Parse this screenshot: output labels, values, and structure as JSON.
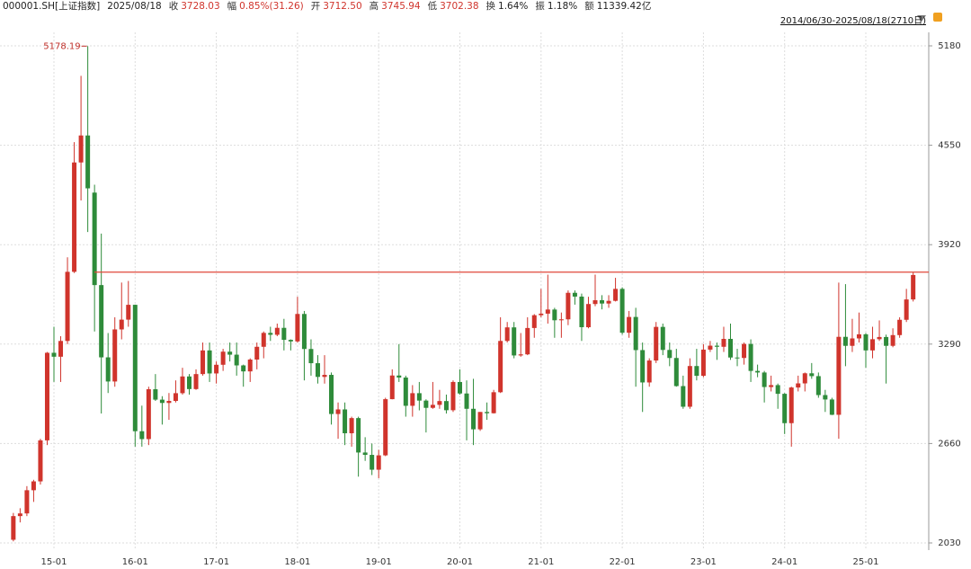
{
  "header": {
    "code": "000001.SH[上证指数]",
    "date": "2025/08/18",
    "items": [
      {
        "label": "收",
        "value": "3728.03",
        "highlight": true
      },
      {
        "label": "幅",
        "value": "0.85%(31.26)",
        "highlight": true
      },
      {
        "label": "开",
        "value": "3712.50",
        "highlight": true
      },
      {
        "label": "高",
        "value": "3745.94",
        "highlight": true
      },
      {
        "label": "低",
        "value": "3702.38",
        "highlight": true
      },
      {
        "label": "换",
        "value": "1.64%",
        "highlight": false
      },
      {
        "label": "振",
        "value": "1.18%",
        "highlight": false
      },
      {
        "label": "额",
        "value": "11339.42亿",
        "highlight": false
      }
    ],
    "range": "2014/06/30-2025/08/18(2710日)"
  },
  "chart_data": {
    "type": "candlestick",
    "up_color": "#d0342c",
    "down_color": "#2e8b3a",
    "categories": [
      null,
      null,
      null,
      null,
      null,
      null,
      "15-01",
      null,
      null,
      null,
      null,
      null,
      null,
      null,
      null,
      null,
      null,
      null,
      "16-01",
      null,
      null,
      null,
      null,
      null,
      null,
      null,
      null,
      null,
      null,
      null,
      "17-01",
      null,
      null,
      null,
      null,
      null,
      null,
      null,
      null,
      null,
      null,
      null,
      "18-01",
      null,
      null,
      null,
      null,
      null,
      null,
      null,
      null,
      null,
      null,
      null,
      "19-01",
      null,
      null,
      null,
      null,
      null,
      null,
      null,
      null,
      null,
      null,
      null,
      "20-01",
      null,
      null,
      null,
      null,
      null,
      null,
      null,
      null,
      null,
      null,
      null,
      "21-01",
      null,
      null,
      null,
      null,
      null,
      null,
      null,
      null,
      null,
      null,
      null,
      "22-01",
      null,
      null,
      null,
      null,
      null,
      null,
      null,
      null,
      null,
      null,
      null,
      "23-01",
      null,
      null,
      null,
      null,
      null,
      null,
      null,
      null,
      null,
      null,
      null,
      "24-01",
      null,
      null,
      null,
      null,
      null,
      null,
      null,
      null,
      null,
      null,
      null,
      "25-01",
      null,
      null,
      null,
      null,
      null,
      null,
      null
    ],
    "ohlc": [
      [
        2050,
        2220,
        2040,
        2200
      ],
      [
        2200,
        2250,
        2160,
        2217
      ],
      [
        2217,
        2390,
        2200,
        2364
      ],
      [
        2364,
        2430,
        2290,
        2420
      ],
      [
        2420,
        2690,
        2400,
        2680
      ],
      [
        2680,
        3240,
        2650,
        3235
      ],
      [
        3235,
        3400,
        3050,
        3210
      ],
      [
        3210,
        3340,
        3050,
        3310
      ],
      [
        3310,
        3840,
        3290,
        3748
      ],
      [
        3748,
        4570,
        3740,
        4441
      ],
      [
        4441,
        4990,
        4200,
        4612
      ],
      [
        4612,
        5178.19,
        4000,
        4277
      ],
      [
        4250,
        4300,
        3370,
        3664
      ],
      [
        3664,
        3990,
        2850,
        3206
      ],
      [
        3206,
        3360,
        2980,
        3053
      ],
      [
        3053,
        3460,
        3020,
        3383
      ],
      [
        3383,
        3680,
        3320,
        3445
      ],
      [
        3445,
        3690,
        3400,
        3539
      ],
      [
        3539,
        3540,
        2640,
        2738
      ],
      [
        2738,
        2900,
        2640,
        2688
      ],
      [
        2688,
        3020,
        2650,
        3004
      ],
      [
        3004,
        3100,
        2930,
        2938
      ],
      [
        2938,
        2960,
        2780,
        2917
      ],
      [
        2917,
        2980,
        2810,
        2930
      ],
      [
        2930,
        3060,
        2920,
        2979
      ],
      [
        2979,
        3140,
        2970,
        3085
      ],
      [
        3085,
        3100,
        2970,
        3005
      ],
      [
        3005,
        3130,
        3000,
        3100
      ],
      [
        3100,
        3300,
        3090,
        3250
      ],
      [
        3250,
        3300,
        3050,
        3104
      ],
      [
        3104,
        3180,
        3040,
        3159
      ],
      [
        3159,
        3260,
        3120,
        3242
      ],
      [
        3242,
        3300,
        3180,
        3223
      ],
      [
        3223,
        3300,
        3090,
        3155
      ],
      [
        3155,
        3160,
        3020,
        3117
      ],
      [
        3117,
        3200,
        3050,
        3192
      ],
      [
        3192,
        3300,
        3130,
        3273
      ],
      [
        3273,
        3370,
        3200,
        3361
      ],
      [
        3361,
        3400,
        3310,
        3349
      ],
      [
        3349,
        3420,
        3340,
        3393
      ],
      [
        3393,
        3450,
        3250,
        3317
      ],
      [
        3317,
        3320,
        3250,
        3307
      ],
      [
        3307,
        3590,
        3300,
        3481
      ],
      [
        3481,
        3500,
        3060,
        3259
      ],
      [
        3259,
        3320,
        3090,
        3169
      ],
      [
        3169,
        3220,
        3040,
        3082
      ],
      [
        3082,
        3220,
        3040,
        3095
      ],
      [
        3095,
        3110,
        2780,
        2847
      ],
      [
        2847,
        2920,
        2690,
        2876
      ],
      [
        2876,
        2920,
        2650,
        2725
      ],
      [
        2725,
        2830,
        2640,
        2821
      ],
      [
        2821,
        2830,
        2450,
        2603
      ],
      [
        2603,
        2700,
        2550,
        2588
      ],
      [
        2588,
        2660,
        2460,
        2494
      ],
      [
        2494,
        2620,
        2440,
        2585
      ],
      [
        2585,
        2950,
        2580,
        2941
      ],
      [
        2941,
        3130,
        2940,
        3091
      ],
      [
        3091,
        3290,
        3050,
        3078
      ],
      [
        3078,
        3090,
        2830,
        2899
      ],
      [
        2899,
        3030,
        2830,
        2979
      ],
      [
        2979,
        3050,
        2870,
        2932
      ],
      [
        2932,
        2940,
        2730,
        2886
      ],
      [
        2886,
        3050,
        2880,
        2905
      ],
      [
        2905,
        3000,
        2880,
        2929
      ],
      [
        2929,
        2970,
        2850,
        2871
      ],
      [
        2871,
        3060,
        2860,
        3050
      ],
      [
        3050,
        3130,
        2970,
        2977
      ],
      [
        2977,
        3060,
        2680,
        2880
      ],
      [
        2880,
        3070,
        2650,
        2750
      ],
      [
        2750,
        2860,
        2740,
        2860
      ],
      [
        2860,
        2920,
        2810,
        2852
      ],
      [
        2852,
        3000,
        2850,
        2985
      ],
      [
        2985,
        3460,
        2980,
        3310
      ],
      [
        3310,
        3430,
        3300,
        3396
      ],
      [
        3396,
        3430,
        3200,
        3218
      ],
      [
        3218,
        3360,
        3210,
        3225
      ],
      [
        3225,
        3460,
        3220,
        3392
      ],
      [
        3392,
        3480,
        3330,
        3473
      ],
      [
        3473,
        3640,
        3460,
        3483
      ],
      [
        3483,
        3730,
        3420,
        3509
      ],
      [
        3509,
        3520,
        3330,
        3441
      ],
      [
        3441,
        3490,
        3330,
        3447
      ],
      [
        3447,
        3630,
        3410,
        3615
      ],
      [
        3615,
        3630,
        3540,
        3591
      ],
      [
        3591,
        3610,
        3310,
        3397
      ],
      [
        3397,
        3590,
        3390,
        3544
      ],
      [
        3544,
        3730,
        3530,
        3568
      ],
      [
        3568,
        3600,
        3510,
        3547
      ],
      [
        3547,
        3600,
        3520,
        3564
      ],
      [
        3564,
        3710,
        3560,
        3640
      ],
      [
        3640,
        3650,
        3350,
        3362
      ],
      [
        3362,
        3500,
        3330,
        3462
      ],
      [
        3462,
        3520,
        3020,
        3252
      ],
      [
        3252,
        3300,
        2860,
        3047
      ],
      [
        3047,
        3200,
        3020,
        3186
      ],
      [
        3186,
        3430,
        3170,
        3399
      ],
      [
        3399,
        3420,
        3220,
        3253
      ],
      [
        3253,
        3300,
        3150,
        3202
      ],
      [
        3202,
        3260,
        3020,
        3024
      ],
      [
        3024,
        3090,
        2880,
        2893
      ],
      [
        2893,
        3200,
        2880,
        3151
      ],
      [
        3151,
        3260,
        3060,
        3089
      ],
      [
        3089,
        3290,
        3080,
        3255
      ],
      [
        3255,
        3310,
        3240,
        3280
      ],
      [
        3280,
        3300,
        3190,
        3273
      ],
      [
        3273,
        3400,
        3240,
        3323
      ],
      [
        3323,
        3420,
        3190,
        3205
      ],
      [
        3205,
        3260,
        3150,
        3202
      ],
      [
        3202,
        3300,
        3160,
        3291
      ],
      [
        3291,
        3320,
        3050,
        3120
      ],
      [
        3120,
        3160,
        3080,
        3110
      ],
      [
        3110,
        3120,
        2920,
        3018
      ],
      [
        3018,
        3090,
        2990,
        3030
      ],
      [
        3030,
        3040,
        2880,
        2975
      ],
      [
        2975,
        2980,
        2720,
        2789
      ],
      [
        2789,
        3020,
        2640,
        3015
      ],
      [
        3015,
        3090,
        2990,
        3041
      ],
      [
        3041,
        3110,
        2990,
        3105
      ],
      [
        3105,
        3170,
        3070,
        3087
      ],
      [
        3087,
        3110,
        2950,
        2967
      ],
      [
        2967,
        3000,
        2860,
        2939
      ],
      [
        2939,
        2950,
        2840,
        2842
      ],
      [
        2842,
        3680,
        2690,
        3336
      ],
      [
        3336,
        3670,
        3150,
        3279
      ],
      [
        3279,
        3450,
        3240,
        3326
      ],
      [
        3326,
        3490,
        3300,
        3352
      ],
      [
        3352,
        3360,
        3140,
        3250
      ],
      [
        3250,
        3400,
        3200,
        3321
      ],
      [
        3321,
        3440,
        3310,
        3335
      ],
      [
        3335,
        3350,
        3040,
        3279
      ],
      [
        3279,
        3390,
        3270,
        3347
      ],
      [
        3347,
        3460,
        3330,
        3444
      ],
      [
        3444,
        3640,
        3430,
        3573
      ],
      [
        3573,
        3745.94,
        3560,
        3728.03
      ]
    ],
    "ylim": [
      2030,
      5180
    ],
    "yticks": [
      2030,
      2660,
      3290,
      3920,
      4550,
      5180
    ],
    "grid": true,
    "reference_line": {
      "value": 3745.94,
      "color": "#e0473a"
    },
    "max_label": 5178.19
  }
}
